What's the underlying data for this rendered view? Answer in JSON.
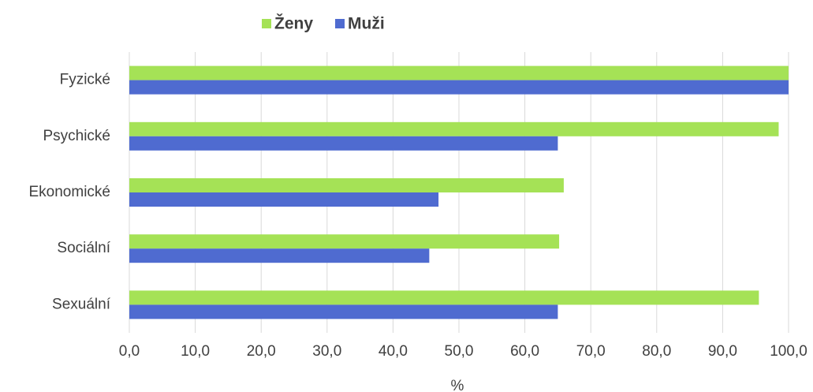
{
  "chart_data": {
    "type": "hbar",
    "categories": [
      "Fyzické",
      "Psychické",
      "Ekonomické",
      "Sociální",
      "Sexuální"
    ],
    "series": [
      {
        "name": "Ženy",
        "color": "#a5e256",
        "values": [
          100,
          98.5,
          65.9,
          65.2,
          95.5
        ]
      },
      {
        "name": "Muži",
        "color": "#4f6bd0",
        "values": [
          100,
          65,
          46.9,
          45.5,
          65
        ]
      }
    ],
    "xlabel": "%",
    "xlim": [
      0,
      100
    ],
    "xticks": [
      {
        "value": 0,
        "label": "0,0"
      },
      {
        "value": 10,
        "label": "10,0"
      },
      {
        "value": 20,
        "label": "20,0"
      },
      {
        "value": 30,
        "label": "30,0"
      },
      {
        "value": 40,
        "label": "40,0"
      },
      {
        "value": 50,
        "label": "50,0"
      },
      {
        "value": 60,
        "label": "60,0"
      },
      {
        "value": 70,
        "label": "70,0"
      },
      {
        "value": 80,
        "label": "80,0"
      },
      {
        "value": 90,
        "label": "90,0"
      },
      {
        "value": 100,
        "label": "100,0"
      }
    ],
    "grid": true,
    "legend": "top"
  }
}
